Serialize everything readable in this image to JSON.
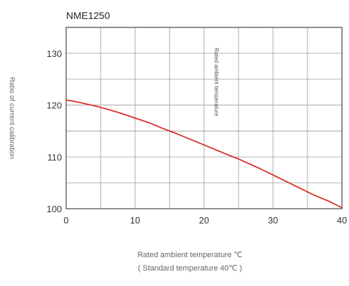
{
  "chart_data": {
    "type": "line",
    "title": "NME1250",
    "xlabel": "Rated ambient temperature ℃",
    "xlabel_sub": "( Standard temperature 40℃ )",
    "ylabel": "Ratio of current calibration",
    "xlim": [
      0,
      40
    ],
    "ylim": [
      100,
      135
    ],
    "x_ticks": [
      0,
      10,
      20,
      30,
      40
    ],
    "y_ticks": [
      100,
      110,
      120,
      130
    ],
    "grid": true,
    "annotation": {
      "text": "Rated ambient temperature",
      "x": 25
    },
    "series": [
      {
        "color": "#d9302b",
        "points": [
          [
            0,
            121.0
          ],
          [
            2,
            120.5
          ],
          [
            4,
            119.9
          ],
          [
            6,
            119.2
          ],
          [
            8,
            118.4
          ],
          [
            10,
            117.5
          ],
          [
            12,
            116.6
          ],
          [
            14,
            115.5
          ],
          [
            16,
            114.5
          ],
          [
            18,
            113.4
          ],
          [
            20,
            112.3
          ],
          [
            22,
            111.2
          ],
          [
            24,
            110.1
          ],
          [
            25,
            109.6
          ],
          [
            26,
            109.0
          ],
          [
            28,
            107.8
          ],
          [
            30,
            106.5
          ],
          [
            32,
            105.2
          ],
          [
            34,
            103.9
          ],
          [
            36,
            102.6
          ],
          [
            38,
            101.5
          ],
          [
            40,
            100.2
          ]
        ]
      }
    ]
  }
}
